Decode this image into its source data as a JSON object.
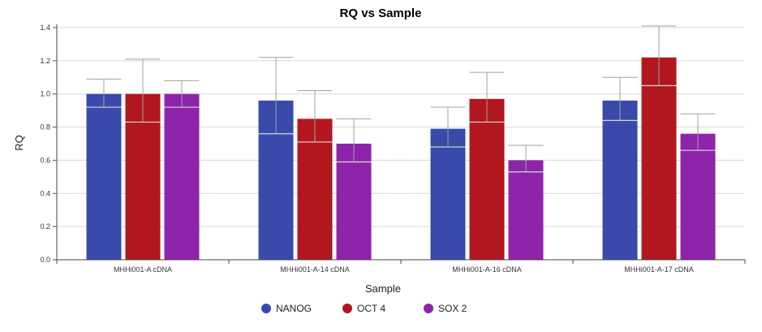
{
  "chart_data": {
    "type": "bar",
    "title": "RQ vs Sample",
    "xlabel": "Sample",
    "ylabel": "RQ",
    "ylim": [
      0,
      1.4
    ],
    "yticks": [
      "0.0",
      "0.2",
      "0.4",
      "0.6",
      "0.8",
      "1.0",
      "1.2",
      "1.4"
    ],
    "grid": true,
    "legend_position": "bottom",
    "categories": [
      "MHHi001-A cDNA",
      "MHHi001-A-14 cDNA",
      "MHHi001-A-16 cDNA",
      "MHHi001-A-17 cDNA"
    ],
    "series": [
      {
        "name": "NANOG",
        "color": "#3a4aab",
        "values": [
          1.0,
          0.96,
          0.79,
          0.96
        ],
        "err_low": [
          0.92,
          0.76,
          0.68,
          0.84
        ],
        "err_high": [
          1.09,
          1.22,
          0.92,
          1.1
        ]
      },
      {
        "name": "OCT 4",
        "color": "#b2171f",
        "values": [
          1.0,
          0.85,
          0.97,
          1.22
        ],
        "err_low": [
          0.83,
          0.71,
          0.83,
          1.05
        ],
        "err_high": [
          1.21,
          1.02,
          1.13,
          1.41
        ]
      },
      {
        "name": "SOX 2",
        "color": "#8e24aa",
        "values": [
          1.0,
          0.7,
          0.6,
          0.76
        ],
        "err_low": [
          0.92,
          0.59,
          0.53,
          0.66
        ],
        "err_high": [
          1.08,
          0.85,
          0.69,
          0.88
        ]
      }
    ]
  }
}
